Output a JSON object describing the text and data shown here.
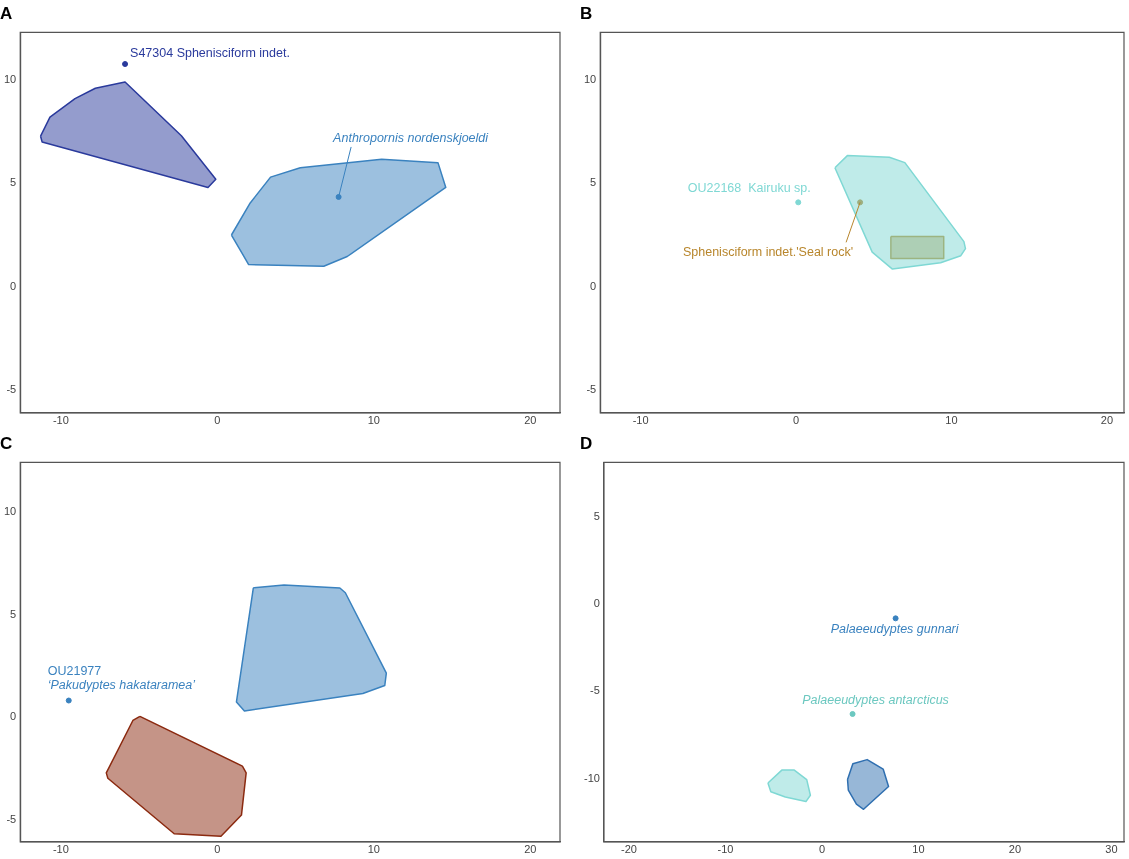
{
  "chart_data": [
    {
      "type": "scatter",
      "title": "A",
      "xlim": [
        -12.6,
        21.9
      ],
      "ylim": [
        -6.1,
        12.3
      ],
      "xticks": [
        -10,
        0,
        10,
        20
      ],
      "yticks": [
        -5,
        0,
        5,
        10
      ],
      "marker": "circle",
      "series": [
        {
          "type": "area",
          "marker": "none",
          "color": "#2a3a9c",
          "x": [
            -11.3,
            -10.7,
            -9.1,
            -7.8,
            -5.9,
            -2.3,
            -0.1,
            -0.6,
            -11.2
          ],
          "values": [
            7.28,
            8.2,
            9.1,
            9.6,
            9.9,
            7.3,
            5.2,
            4.8,
            7.0
          ]
        },
        {
          "type": "area",
          "marker": "none",
          "color": "#3a82bf",
          "x": [
            0.9,
            2.0,
            6.8,
            8.3,
            14.6,
            14.1,
            10.5,
            5.3,
            3.4,
            2.1
          ],
          "values": [
            2.5,
            1.07,
            0.99,
            1.46,
            4.8,
            6.0,
            6.17,
            5.75,
            5.3,
            4.05
          ]
        },
        {
          "name": "S47304 Sphenisciform indet.",
          "color": "#2a3a9c",
          "x": [
            -5.9
          ],
          "values": [
            10.77
          ]
        },
        {
          "name": "Anthropornis nordenskjoeldi",
          "color": "#3a82bf",
          "x": [
            7.75
          ],
          "values": [
            4.34
          ]
        }
      ]
    },
    {
      "type": "scatter",
      "title": "B",
      "xlim": [
        -12.6,
        21.1
      ],
      "ylim": [
        -6.1,
        12.3
      ],
      "xticks": [
        -10,
        0,
        10,
        20
      ],
      "yticks": [
        -5,
        0,
        5,
        10
      ],
      "marker": "circle",
      "series": [
        {
          "type": "area",
          "marker": "none",
          "color": "#7fd8d4",
          "x": [
            2.5,
            3.3,
            6.0,
            7.0,
            10.8,
            10.9,
            10.6,
            9.3,
            6.2,
            4.9
          ],
          "values": [
            5.75,
            6.34,
            6.26,
            6.0,
            2.18,
            1.84,
            1.5,
            1.16,
            0.85,
            1.67
          ]
        },
        {
          "type": "area",
          "marker": "none",
          "color": "#b8902f",
          "x": [
            6.1,
            9.5,
            9.5,
            6.1
          ],
          "values": [
            2.43,
            2.43,
            1.36,
            1.36
          ]
        },
        {
          "name": "OU22168  Kairuku sp.",
          "color": "#7fd8d4",
          "x": [
            0.14
          ],
          "values": [
            4.08
          ]
        },
        {
          "name": "Sphenisciform indet.'Seal rock'",
          "color": "#b8862c",
          "x": [
            4.12
          ],
          "values": [
            4.08
          ]
        }
      ]
    },
    {
      "type": "scatter",
      "title": "C",
      "xlim": [
        -12.6,
        21.9
      ],
      "ylim": [
        -6.05,
        12.4
      ],
      "xticks": [
        -10,
        0,
        10,
        20
      ],
      "yticks": [
        -5,
        0,
        5,
        10
      ],
      "marker": "circle",
      "series": [
        {
          "type": "area",
          "marker": "none",
          "color": "#3a82bf",
          "x": [
            2.3,
            4.26,
            7.83,
            8.18,
            10.8,
            10.7,
            9.3,
            1.73,
            1.22
          ],
          "values": [
            6.3,
            6.44,
            6.29,
            6.06,
            2.15,
            1.55,
            1.16,
            0.31,
            0.75
          ]
        },
        {
          "type": "area",
          "marker": "none",
          "color": "#8b2a10",
          "x": [
            -4.95,
            1.6,
            1.84,
            1.54,
            0.23,
            -2.76,
            -7.0,
            -7.1,
            -5.4
          ],
          "values": [
            0.05,
            -2.37,
            -2.7,
            -4.75,
            -5.78,
            -5.66,
            -2.96,
            -2.7,
            -0.15
          ]
        },
        {
          "name": "OU21977\n‘Pakudyptes hakataramea’",
          "color": "#3a82bf",
          "x": [
            -9.5
          ],
          "values": [
            0.82
          ]
        }
      ]
    },
    {
      "type": "scatter",
      "title": "D",
      "xlim": [
        -22.6,
        31.3
      ],
      "ylim": [
        -13.6,
        8.1
      ],
      "xticks": [
        -20,
        -10,
        0,
        10,
        20,
        30
      ],
      "yticks": [
        -10,
        -5,
        0,
        5
      ],
      "marker": "circle",
      "series": [
        {
          "type": "area",
          "marker": "none",
          "color": "#7fd8d4",
          "x": [
            -5.6,
            -4.16,
            -2.87,
            -1.58,
            -1.2,
            -1.66,
            -3.8,
            -5.3
          ],
          "values": [
            -10.24,
            -9.5,
            -9.5,
            -10.04,
            -10.94,
            -11.3,
            -11.04,
            -10.74
          ]
        },
        {
          "type": "area",
          "marker": "none",
          "color": "#2f6fb0",
          "x": [
            2.65,
            3.2,
            4.68,
            6.34,
            6.9,
            4.31,
            3.57,
            2.73
          ],
          "values": [
            -10.04,
            -9.14,
            -8.9,
            -9.44,
            -10.44,
            -11.74,
            -11.44,
            -10.64
          ]
        },
        {
          "name": "Palaeeudyptes gunnari",
          "color": "#3a82bf",
          "x": [
            7.63
          ],
          "values": [
            -0.82
          ]
        },
        {
          "name": "Palaeeudyptes antarcticus",
          "color": "#6cc8c0",
          "x": [
            3.17
          ],
          "values": [
            -6.29
          ]
        }
      ]
    }
  ]
}
